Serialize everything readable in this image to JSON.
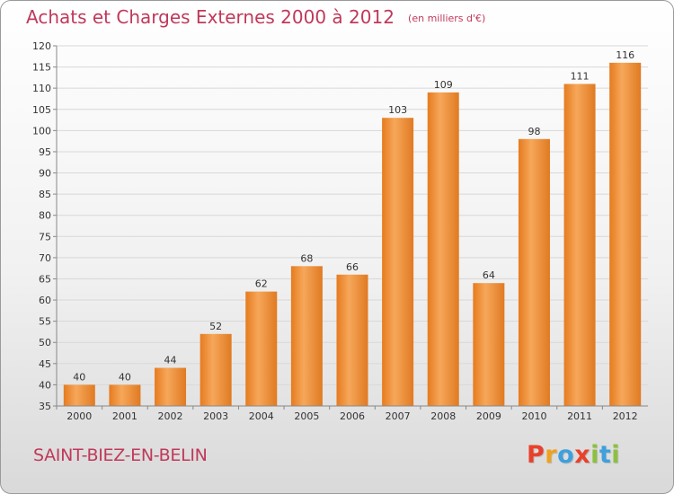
{
  "chart_data": {
    "type": "bar",
    "title": "Achats et Charges Externes 2000 à 2012",
    "subtitle": "(en milliers d'€)",
    "categories": [
      "2000",
      "2001",
      "2002",
      "2003",
      "2004",
      "2005",
      "2006",
      "2007",
      "2008",
      "2009",
      "2010",
      "2011",
      "2012"
    ],
    "values": [
      40,
      40,
      44,
      52,
      62,
      68,
      66,
      103,
      109,
      64,
      98,
      111,
      116
    ],
    "ylim": [
      35,
      120
    ],
    "yticks": [
      35,
      40,
      45,
      50,
      55,
      60,
      65,
      70,
      75,
      80,
      85,
      90,
      95,
      100,
      105,
      110,
      115,
      120
    ],
    "grid": true,
    "bar_color": "#f0913a",
    "xlabel": "",
    "ylabel": ""
  },
  "footer": {
    "city": "SAINT-BIEZ-EN-BELIN",
    "logo_letters": [
      "P",
      "r",
      "o",
      "x",
      "i",
      "t",
      "i"
    ],
    "logo_colors": [
      "#e8412b",
      "#f0a21c",
      "#3ea0dd",
      "#e8412b",
      "#8cc13f",
      "#3ea0dd",
      "#8cc13f"
    ]
  },
  "colors": {
    "title": "#c0395a",
    "grid": "#d8d8d8"
  }
}
